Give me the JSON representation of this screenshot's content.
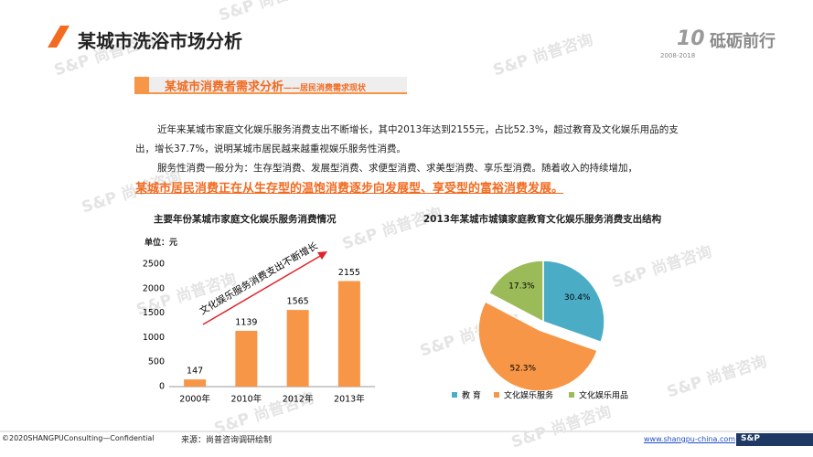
{
  "header": {
    "title": "某城市洗浴市场分析",
    "logo_text": "砥砺前行",
    "logo_years": "2008-2018"
  },
  "section": {
    "title": "某城市消费者需求分析",
    "subtitle": "——居民消费需求现状"
  },
  "body": {
    "paragraph_1": "近年来某城市家庭文化娱乐服务消费支出不断增长，其中2013年达到2155元，占比52.3%，超过教育及文化娱乐用品的支出，增长37.7%，说明某城市居民越来越重视娱乐服务性消费。",
    "paragraph_2": "服务性消费一般分为：生存型消费、发展型消费、求便型消费、求美型消费、享乐型消费。随着收入的持续增加，",
    "highlight": "某城市居民消费正在从生存型的温饱消费逐步向发展型、享受型的富裕消费发展。"
  },
  "watermark": "S&P 尚普咨询",
  "footer": {
    "copyright": "©2020SHANGPUConsulting—Confidential",
    "source": "来源：尚普咨询调研绘制",
    "url": "www.shangpu-china.com",
    "brand": "S&P"
  },
  "chart_data": [
    {
      "type": "bar",
      "title": "主要年份某城市家庭文化娱乐服务消费情况",
      "unit_label": "单位：元",
      "categories": [
        "2000年",
        "2010年",
        "2012年",
        "2013年"
      ],
      "values": [
        147,
        1139,
        1565,
        2155
      ],
      "color": "#f79646",
      "ylim": [
        0,
        2500
      ],
      "yticks": [
        0,
        500,
        1000,
        1500,
        2000,
        2500
      ],
      "annotation": "文化娱乐服务消费支出不断增长",
      "grid": false
    },
    {
      "type": "pie",
      "title": "2013年某城市城镇家庭教育文化娱乐服务消费支出结构",
      "categories": [
        "教  育",
        "文化娱乐服务",
        "文化娱乐用品"
      ],
      "values": [
        30.4,
        52.3,
        17.3
      ],
      "value_labels": [
        "30.4%",
        "52.3%",
        "17.3%"
      ],
      "colors": [
        "#4bacc6",
        "#f79646",
        "#9bbb59"
      ],
      "legend": "bottom",
      "exploded": 1
    }
  ]
}
